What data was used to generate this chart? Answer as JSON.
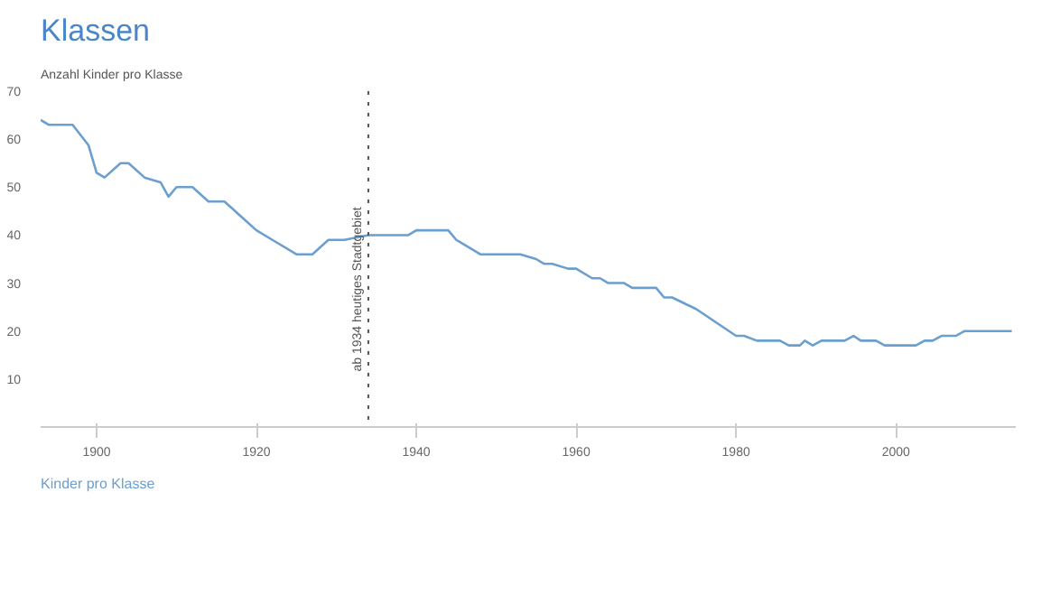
{
  "chart_data": {
    "type": "line",
    "title": "Klassen",
    "subtitle": "Anzahl Kinder pro Klasse",
    "x": [
      1893,
      1894,
      1897,
      1899,
      1900,
      1901,
      1903,
      1904,
      1906,
      1908,
      1909,
      1910,
      1912,
      1914,
      1916,
      1918,
      1920,
      1922,
      1925,
      1927,
      1929,
      1931,
      1934,
      1939,
      1940,
      1944,
      1945,
      1948,
      1953,
      1955,
      1956,
      1957,
      1959,
      1960,
      1962,
      1963,
      1964,
      1966,
      1967,
      1970,
      1971,
      1972,
      1975,
      1980,
      1981,
      1982.6,
      1985.5,
      1986.6,
      1988,
      1988.6,
      1989.6,
      1990.7,
      1993.6,
      1994.7,
      1995.6,
      1997.5,
      1998.6,
      2002.5,
      2003.6,
      2004.6,
      2005.7,
      2007.5,
      2008.6,
      2014.5
    ],
    "series": [
      {
        "name": "Kinder pro Klasse",
        "color": "#6a9fd0",
        "values": [
          64,
          63,
          63,
          58.7,
          53,
          52,
          55,
          55,
          52,
          51,
          48,
          50,
          50,
          47,
          47,
          44,
          41,
          39,
          36,
          36,
          39,
          39,
          40,
          40,
          41,
          41,
          39,
          36,
          36,
          35,
          34,
          34,
          33,
          33,
          31,
          31,
          30,
          30,
          29,
          29,
          27,
          27,
          24.6,
          19,
          19,
          18,
          18,
          17,
          17,
          18,
          17,
          18,
          18,
          19,
          18,
          18,
          17,
          17,
          18,
          18,
          19,
          19,
          20,
          20
        ]
      }
    ],
    "xlim": [
      1893,
      2015
    ],
    "xticks": [
      1900,
      1920,
      1940,
      1960,
      1980,
      2000
    ],
    "ylim": [
      0,
      70
    ],
    "yticks": [
      10,
      20,
      30,
      40,
      50,
      60,
      70
    ],
    "ref_lines": [
      {
        "axis": "x",
        "value": 1934,
        "label": "ab 1934 heutiges Stadtgebiet",
        "color": "#555555",
        "line_style": "dotted"
      }
    ],
    "grid": false,
    "legend": "bottom",
    "marker": "none",
    "line_style": "solid"
  }
}
